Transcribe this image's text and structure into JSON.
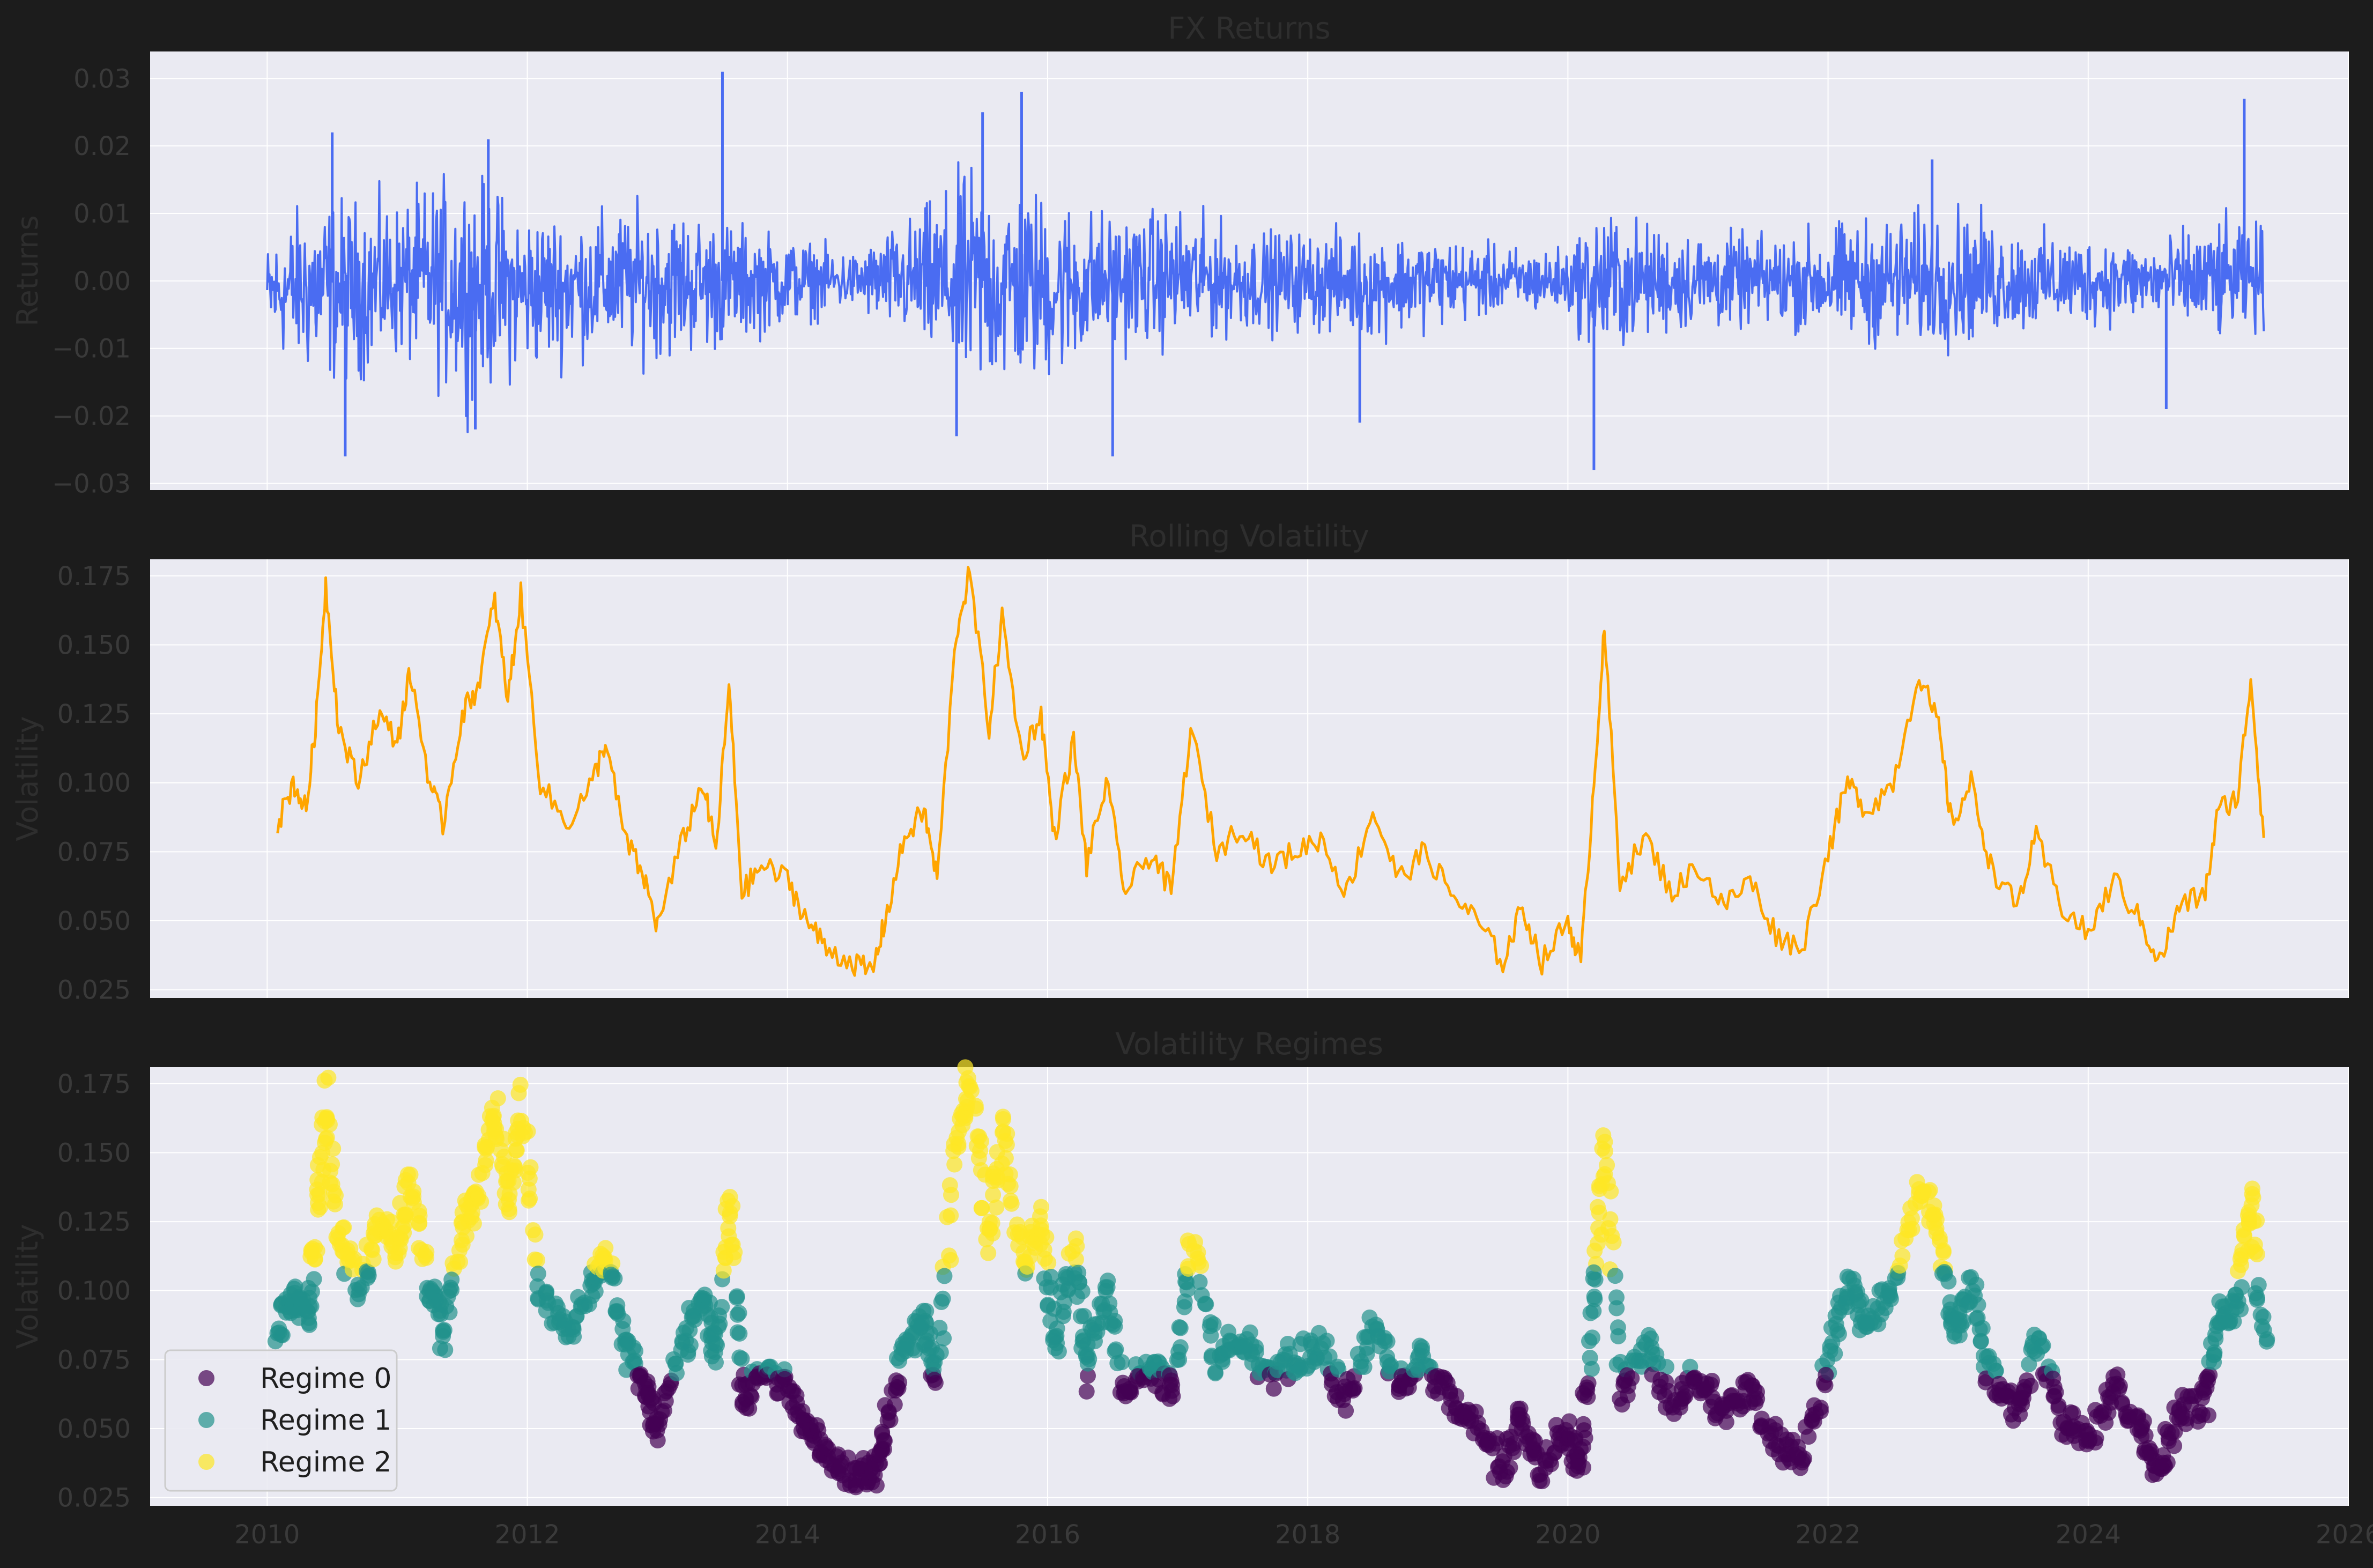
{
  "colors": {
    "figure_bg": "#1c1c1c",
    "panel_bg": "#eaeaf2",
    "grid": "#ffffff",
    "returns_line": "#4a6cf2",
    "volatility_line": "#ffa500",
    "regime_0": "#440154",
    "regime_1": "#21918c",
    "regime_2": "#fde725",
    "axis_text": "#3a3a3a"
  },
  "chart_data": [
    {
      "type": "line",
      "title": "FX Returns",
      "xlabel": "",
      "ylabel": "Returns",
      "xlim": [
        2009.1,
        2026.0
      ],
      "ylim": [
        -0.031,
        0.034
      ],
      "yticks": [
        -0.03,
        -0.02,
        -0.01,
        0.0,
        0.01,
        0.02,
        0.03
      ],
      "ytick_labels": [
        "−0.03",
        "−0.02",
        "−0.01",
        "0.00",
        "0.01",
        "0.02",
        "0.03"
      ],
      "x_range": [
        2010.0,
        2025.35
      ],
      "grid": true,
      "series": [
        {
          "color": "#4a6cf2",
          "envelope": [
            [
              2010.0,
              -0.011,
              0.007
            ],
            [
              2010.3,
              -0.017,
              0.015
            ],
            [
              2010.6,
              -0.018,
              0.015
            ],
            [
              2011.0,
              -0.014,
              0.014
            ],
            [
              2011.5,
              -0.021,
              0.02
            ],
            [
              2012.0,
              -0.016,
              0.013
            ],
            [
              2012.5,
              -0.013,
              0.012
            ],
            [
              2013.0,
              -0.014,
              0.014
            ],
            [
              2013.5,
              -0.012,
              0.011
            ],
            [
              2014.0,
              -0.008,
              0.008
            ],
            [
              2014.5,
              -0.005,
              0.005
            ],
            [
              2015.0,
              -0.012,
              0.012
            ],
            [
              2015.4,
              -0.021,
              0.02
            ],
            [
              2016.0,
              -0.018,
              0.016
            ],
            [
              2016.5,
              -0.012,
              0.012
            ],
            [
              2017.0,
              -0.012,
              0.013
            ],
            [
              2017.5,
              -0.009,
              0.009
            ],
            [
              2018.0,
              -0.009,
              0.009
            ],
            [
              2018.5,
              -0.01,
              0.009
            ],
            [
              2019.0,
              -0.008,
              0.008
            ],
            [
              2019.5,
              -0.006,
              0.006
            ],
            [
              2020.0,
              -0.006,
              0.006
            ],
            [
              2020.25,
              -0.015,
              0.014
            ],
            [
              2020.6,
              -0.01,
              0.01
            ],
            [
              2021.0,
              -0.009,
              0.009
            ],
            [
              2021.5,
              -0.008,
              0.008
            ],
            [
              2022.0,
              -0.01,
              0.01
            ],
            [
              2022.5,
              -0.012,
              0.012
            ],
            [
              2023.0,
              -0.012,
              0.013
            ],
            [
              2023.5,
              -0.009,
              0.009
            ],
            [
              2024.0,
              -0.008,
              0.008
            ],
            [
              2024.5,
              -0.007,
              0.007
            ],
            [
              2025.0,
              -0.011,
              0.011
            ],
            [
              2025.35,
              -0.009,
              0.01
            ]
          ],
          "spikes": [
            [
              2010.6,
              -0.026
            ],
            [
              2010.5,
              0.022
            ],
            [
              2011.7,
              0.021
            ],
            [
              2011.6,
              -0.022
            ],
            [
              2013.5,
              0.031
            ],
            [
              2015.5,
              0.025
            ],
            [
              2015.8,
              0.028
            ],
            [
              2015.3,
              -0.023
            ],
            [
              2016.5,
              -0.026
            ],
            [
              2018.4,
              -0.021
            ],
            [
              2020.2,
              -0.028
            ],
            [
              2022.8,
              0.018
            ],
            [
              2025.2,
              0.027
            ],
            [
              2024.6,
              -0.019
            ]
          ]
        }
      ]
    },
    {
      "type": "line",
      "title": "Rolling Volatility",
      "xlabel": "",
      "ylabel": "Volatility",
      "xlim": [
        2009.1,
        2026.0
      ],
      "ylim": [
        0.022,
        0.181
      ],
      "yticks": [
        0.025,
        0.05,
        0.075,
        0.1,
        0.125,
        0.15,
        0.175
      ],
      "ytick_labels": [
        "0.025",
        "0.050",
        "0.075",
        "0.100",
        "0.125",
        "0.150",
        "0.175"
      ],
      "grid": true,
      "series": [
        {
          "color": "#ffa500",
          "points": [
            [
              2010.08,
              0.085
            ],
            [
              2010.2,
              0.1
            ],
            [
              2010.3,
              0.09
            ],
            [
              2010.38,
              0.125
            ],
            [
              2010.45,
              0.172
            ],
            [
              2010.55,
              0.12
            ],
            [
              2010.7,
              0.1
            ],
            [
              2010.85,
              0.125
            ],
            [
              2011.0,
              0.115
            ],
            [
              2011.1,
              0.14
            ],
            [
              2011.25,
              0.1
            ],
            [
              2011.35,
              0.085
            ],
            [
              2011.5,
              0.125
            ],
            [
              2011.62,
              0.135
            ],
            [
              2011.75,
              0.166
            ],
            [
              2011.85,
              0.13
            ],
            [
              2011.95,
              0.168
            ],
            [
              2012.1,
              0.1
            ],
            [
              2012.3,
              0.085
            ],
            [
              2012.5,
              0.1
            ],
            [
              2012.6,
              0.115
            ],
            [
              2012.75,
              0.08
            ],
            [
              2012.9,
              0.065
            ],
            [
              2013.0,
              0.048
            ],
            [
              2013.2,
              0.08
            ],
            [
              2013.35,
              0.1
            ],
            [
              2013.45,
              0.075
            ],
            [
              2013.55,
              0.135
            ],
            [
              2013.65,
              0.06
            ],
            [
              2013.8,
              0.07
            ],
            [
              2014.0,
              0.065
            ],
            [
              2014.15,
              0.05
            ],
            [
              2014.3,
              0.04
            ],
            [
              2014.5,
              0.035
            ],
            [
              2014.65,
              0.031
            ],
            [
              2014.75,
              0.05
            ],
            [
              2014.9,
              0.08
            ],
            [
              2015.05,
              0.09
            ],
            [
              2015.15,
              0.065
            ],
            [
              2015.3,
              0.155
            ],
            [
              2015.4,
              0.176
            ],
            [
              2015.55,
              0.12
            ],
            [
              2015.65,
              0.16
            ],
            [
              2015.8,
              0.11
            ],
            [
              2015.95,
              0.125
            ],
            [
              2016.05,
              0.08
            ],
            [
              2016.2,
              0.115
            ],
            [
              2016.3,
              0.07
            ],
            [
              2016.45,
              0.1
            ],
            [
              2016.6,
              0.06
            ],
            [
              2016.8,
              0.075
            ],
            [
              2016.95,
              0.06
            ],
            [
              2017.1,
              0.12
            ],
            [
              2017.3,
              0.075
            ],
            [
              2017.5,
              0.085
            ],
            [
              2017.7,
              0.07
            ],
            [
              2017.9,
              0.075
            ],
            [
              2018.1,
              0.08
            ],
            [
              2018.3,
              0.06
            ],
            [
              2018.5,
              0.09
            ],
            [
              2018.7,
              0.065
            ],
            [
              2018.9,
              0.075
            ],
            [
              2019.1,
              0.06
            ],
            [
              2019.3,
              0.05
            ],
            [
              2019.5,
              0.035
            ],
            [
              2019.65,
              0.055
            ],
            [
              2019.8,
              0.035
            ],
            [
              2020.0,
              0.05
            ],
            [
              2020.1,
              0.035
            ],
            [
              2020.2,
              0.1
            ],
            [
              2020.28,
              0.155
            ],
            [
              2020.4,
              0.065
            ],
            [
              2020.6,
              0.08
            ],
            [
              2020.8,
              0.06
            ],
            [
              2021.0,
              0.07
            ],
            [
              2021.2,
              0.055
            ],
            [
              2021.4,
              0.065
            ],
            [
              2021.6,
              0.045
            ],
            [
              2021.8,
              0.04
            ],
            [
              2022.0,
              0.075
            ],
            [
              2022.15,
              0.1
            ],
            [
              2022.3,
              0.09
            ],
            [
              2022.5,
              0.1
            ],
            [
              2022.7,
              0.14
            ],
            [
              2022.85,
              0.12
            ],
            [
              2022.95,
              0.085
            ],
            [
              2023.1,
              0.1
            ],
            [
              2023.25,
              0.07
            ],
            [
              2023.45,
              0.055
            ],
            [
              2023.6,
              0.08
            ],
            [
              2023.8,
              0.055
            ],
            [
              2024.0,
              0.045
            ],
            [
              2024.2,
              0.065
            ],
            [
              2024.4,
              0.05
            ],
            [
              2024.55,
              0.035
            ],
            [
              2024.7,
              0.055
            ],
            [
              2024.9,
              0.06
            ],
            [
              2025.0,
              0.09
            ],
            [
              2025.15,
              0.095
            ],
            [
              2025.25,
              0.138
            ],
            [
              2025.35,
              0.08
            ]
          ]
        }
      ]
    },
    {
      "type": "scatter",
      "title": "Volatility Regimes",
      "xlabel": "",
      "ylabel": "Volatility",
      "xlim": [
        2009.1,
        2026.0
      ],
      "ylim": [
        0.022,
        0.181
      ],
      "yticks": [
        0.025,
        0.05,
        0.075,
        0.1,
        0.125,
        0.15,
        0.175
      ],
      "ytick_labels": [
        "0.025",
        "0.050",
        "0.075",
        "0.100",
        "0.125",
        "0.150",
        "0.175"
      ],
      "xticks": [
        2010,
        2012,
        2014,
        2016,
        2018,
        2020,
        2022,
        2024,
        2026
      ],
      "xtick_labels": [
        "2010",
        "2012",
        "2014",
        "2016",
        "2018",
        "2020",
        "2022",
        "2024",
        "2026"
      ],
      "grid": true,
      "legend_position": "lower-left",
      "series": [
        {
          "name": "Regime 0",
          "color": "#440154",
          "lower": 0.0,
          "upper": 0.07
        },
        {
          "name": "Regime 1",
          "color": "#21918c",
          "lower": 0.07,
          "upper": 0.107
        },
        {
          "name": "Regime 2",
          "color": "#fde725",
          "lower": 0.107,
          "upper": 1.0
        }
      ],
      "source": "rolling_volatility"
    }
  ]
}
